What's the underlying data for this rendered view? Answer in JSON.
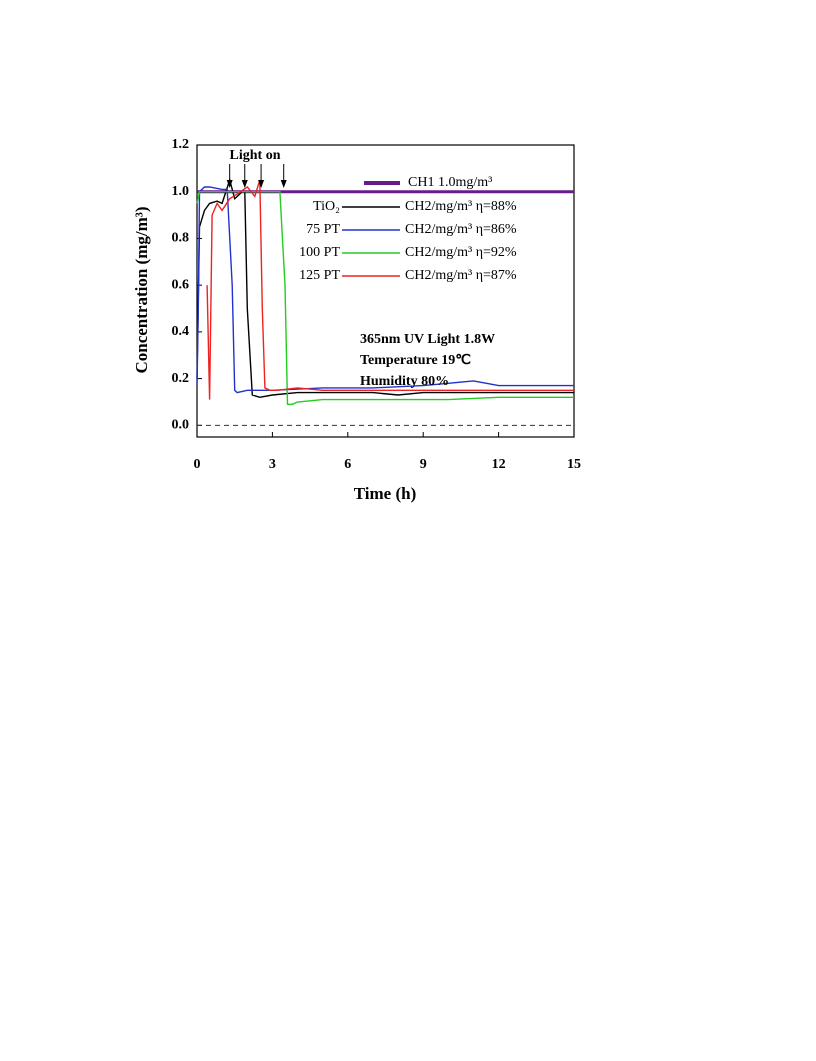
{
  "chart_data": {
    "type": "line",
    "xlabel": "Time (h)",
    "ylabel": "Concentration (mg/m³)",
    "xlim": [
      0,
      15
    ],
    "xticks": [
      0,
      3,
      6,
      9,
      12,
      15
    ],
    "ylim": [
      -0.05,
      1.2
    ],
    "yticks": [
      {
        "value": 0,
        "label": "0.0"
      },
      0.2,
      0.4,
      0.6,
      0.8,
      {
        "value": 1,
        "label": "1.0"
      },
      1.2
    ],
    "hline": 0,
    "series": [
      {
        "name": "CH1 1.0mg/m³",
        "color": "#6a1b8a",
        "x": [
          0,
          15
        ],
        "values": [
          1,
          1
        ]
      },
      {
        "name": "TiO₂",
        "label": "CH2/mg/m³ η=88%",
        "color": "#000000",
        "x": [
          0,
          0.1,
          0.3,
          0.5,
          0.8,
          1.0,
          1.3,
          1.5,
          1.8,
          1.9,
          2.0,
          2.2,
          2.5,
          3,
          4,
          5,
          6,
          7,
          8,
          9,
          10,
          11,
          12,
          13,
          14,
          15
        ],
        "values": [
          0.2,
          0.85,
          0.92,
          0.95,
          0.96,
          0.95,
          1.05,
          0.97,
          1.0,
          1.0,
          0.5,
          0.13,
          0.12,
          0.13,
          0.14,
          0.14,
          0.14,
          0.14,
          0.13,
          0.14,
          0.14,
          0.14,
          0.14,
          0.14,
          0.14,
          0.14
        ]
      },
      {
        "name": "75 PT",
        "label": "CH2/mg/m³ η=86%",
        "color": "#2233cc",
        "x": [
          0,
          0.05,
          0.1,
          0.3,
          0.5,
          1.0,
          1.2,
          1.4,
          1.5,
          1.6,
          2,
          3,
          5,
          7,
          9,
          10,
          11,
          12,
          15
        ],
        "values": [
          0.17,
          0.5,
          1.0,
          1.02,
          1.02,
          1.01,
          1.01,
          0.6,
          0.15,
          0.14,
          0.15,
          0.15,
          0.16,
          0.16,
          0.17,
          0.18,
          0.19,
          0.17,
          0.17
        ]
      },
      {
        "name": "100 PT",
        "label": "CH2/mg/m³ η=92%",
        "color": "#22cc22",
        "x": [
          0,
          0.1,
          0.3,
          1,
          2,
          3,
          3.3,
          3.5,
          3.6,
          3.8,
          4,
          5,
          6,
          8,
          10,
          12,
          13,
          15
        ],
        "values": [
          0.95,
          1.0,
          1.0,
          1.0,
          1.0,
          1.0,
          1.0,
          0.6,
          0.09,
          0.09,
          0.1,
          0.11,
          0.11,
          0.11,
          0.11,
          0.12,
          0.12,
          0.12
        ]
      },
      {
        "name": "125 PT",
        "label": "CH2/mg/m³ η=87%",
        "color": "#ee2222",
        "x": [
          0.4,
          0.5,
          0.6,
          0.8,
          1.0,
          1.3,
          1.6,
          2.0,
          2.3,
          2.5,
          2.6,
          2.7,
          2.9,
          3.2,
          4,
          5,
          7,
          9,
          11,
          13,
          15
        ],
        "values": [
          0.6,
          0.11,
          0.9,
          0.95,
          0.92,
          0.97,
          0.99,
          1.02,
          0.98,
          1.05,
          0.5,
          0.16,
          0.15,
          0.15,
          0.16,
          0.15,
          0.15,
          0.15,
          0.15,
          0.15,
          0.15
        ]
      }
    ],
    "annotations": {
      "light_on": "Light on",
      "arrows_x": [
        1.3,
        1.9,
        2.55,
        3.45
      ],
      "conditions": [
        "365nm UV Light 1.8W",
        "Temperature 19℃",
        "Humidity 80%"
      ]
    }
  }
}
